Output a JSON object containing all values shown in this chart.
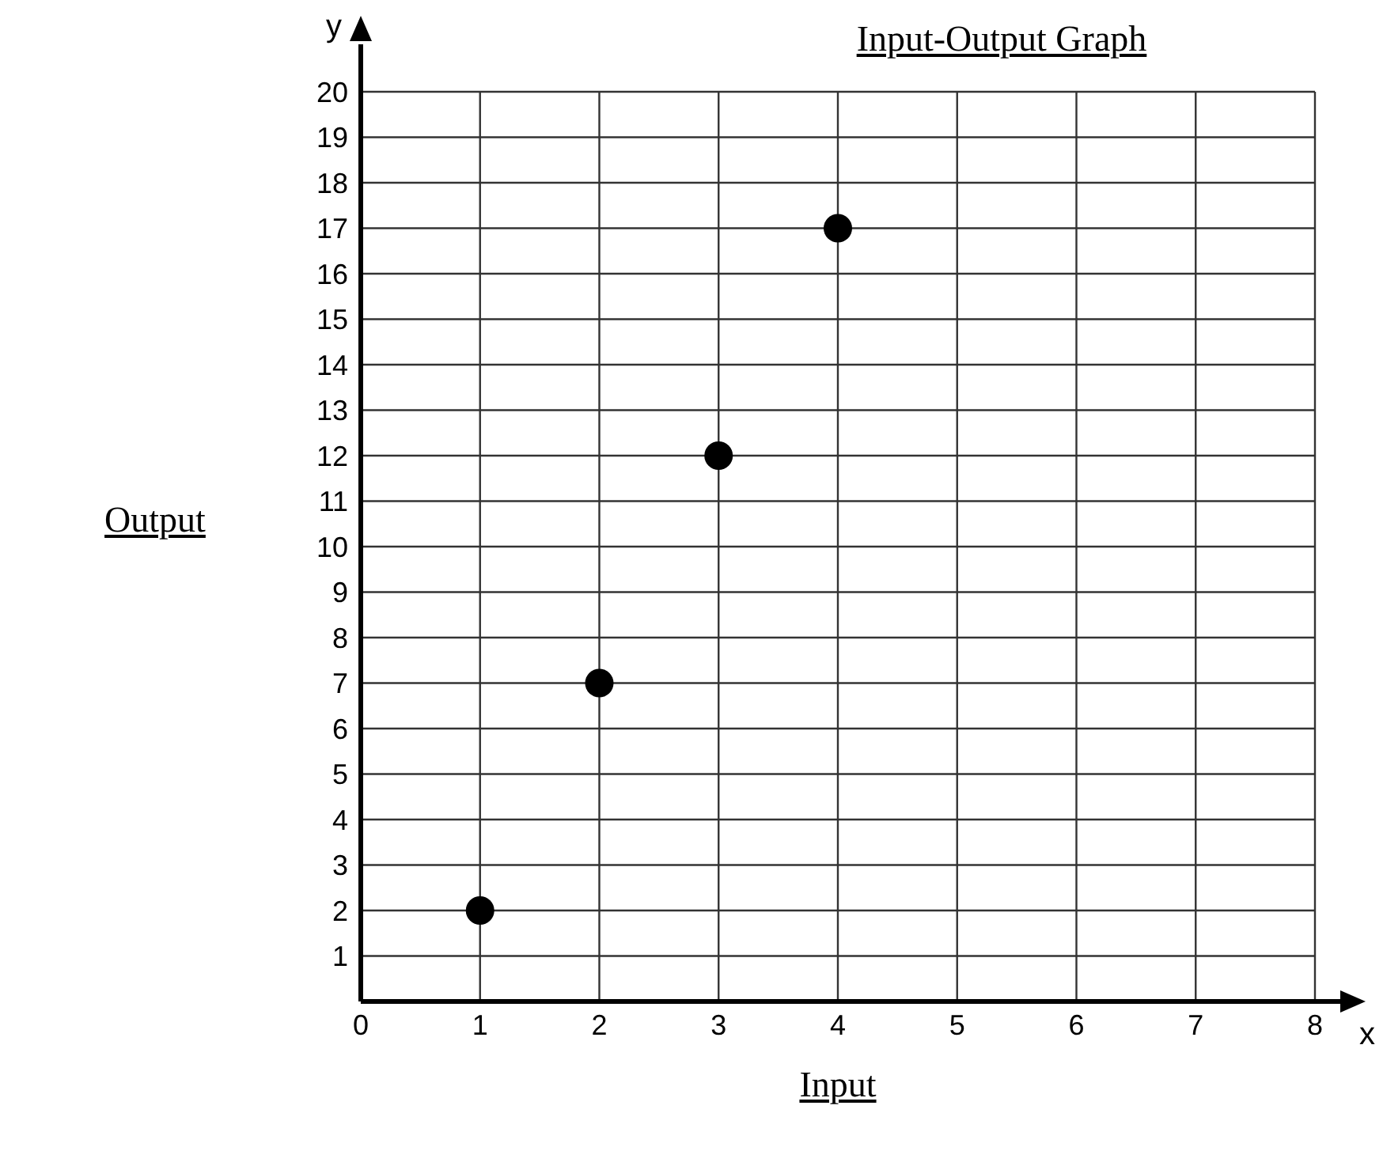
{
  "chart_data": {
    "type": "scatter",
    "title": "Input-Output Graph",
    "xlabel": "Input",
    "ylabel": "Output",
    "annotations": [
      "x",
      "y"
    ],
    "x": [
      1,
      2,
      3,
      4
    ],
    "series": [
      {
        "color": "#000000",
        "values": [
          2,
          7,
          12,
          17
        ]
      }
    ],
    "xlim": [
      0,
      8
    ],
    "xticks": [
      0,
      1,
      2,
      3,
      4,
      5,
      6,
      7,
      8
    ],
    "ylim": [
      0,
      20
    ],
    "yticks": [
      {
        "value": 0,
        "label": null
      },
      1,
      2,
      3,
      4,
      5,
      6,
      7,
      8,
      9,
      10,
      11,
      12,
      13,
      14,
      15,
      16,
      17,
      18,
      19,
      20
    ],
    "grid": true,
    "legend": false,
    "marker": "circle"
  }
}
